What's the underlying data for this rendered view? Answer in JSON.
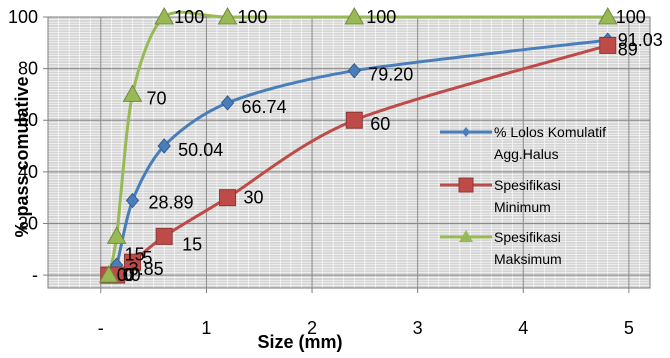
{
  "chart_data": {
    "type": "line",
    "xlabel": "Size (mm)",
    "ylabel": "% pass comulative",
    "xlim": [
      -0.5,
      5.2
    ],
    "ylim": [
      -5,
      100
    ],
    "x_ticks": [
      {
        "value": 0,
        "label": "-"
      },
      {
        "value": 1,
        "label": "1"
      },
      {
        "value": 2,
        "label": "2"
      },
      {
        "value": 3,
        "label": "3"
      },
      {
        "value": 4,
        "label": "4"
      },
      {
        "value": 5,
        "label": "5"
      }
    ],
    "y_ticks": [
      {
        "value": 0,
        "label": "-"
      },
      {
        "value": 20,
        "label": "20"
      },
      {
        "value": 40,
        "label": "40"
      },
      {
        "value": 60,
        "label": "60"
      },
      {
        "value": 80,
        "label": "80"
      },
      {
        "value": 100,
        "label": "100"
      }
    ],
    "grid": true,
    "legend_position": "right",
    "series": [
      {
        "name": "% Lolos Komulatif Agg.Halus",
        "legend_lines": [
          "% Lolos Komulatif",
          "Agg.Halus"
        ],
        "color": "#4a7ebb",
        "marker": "diamond",
        "x": [
          0.075,
          0.15,
          0.3,
          0.6,
          1.2,
          2.4,
          4.8
        ],
        "y": [
          0,
          3.85,
          28.89,
          50.04,
          66.74,
          79.2,
          91.03
        ],
        "labels": [
          "0",
          "3.85",
          "28.89",
          "50.04",
          "66.74",
          "79.20",
          "91.03"
        ]
      },
      {
        "name": "Spesifikasi Minimum",
        "legend_lines": [
          "Spesifikasi",
          "Minimum"
        ],
        "color": "#be4b48",
        "marker": "square",
        "x": [
          0.075,
          0.15,
          0.3,
          0.6,
          1.2,
          2.4,
          4.8
        ],
        "y": [
          0,
          0,
          5,
          15,
          30,
          60,
          89
        ],
        "labels": [
          "0",
          "0",
          "5",
          "15",
          "30",
          "60",
          "89"
        ]
      },
      {
        "name": "Spesifikasi Maksimum",
        "legend_lines": [
          "Spesifikasi",
          "Maksimum"
        ],
        "color": "#98b954",
        "marker": "triangle",
        "x": [
          0.075,
          0.15,
          0.3,
          0.6,
          1.2,
          2.4,
          4.8
        ],
        "y": [
          0,
          15,
          70,
          100,
          100,
          100,
          100
        ],
        "labels": [
          "0",
          "15",
          "70",
          "100",
          "100",
          "100",
          "100"
        ]
      }
    ]
  }
}
